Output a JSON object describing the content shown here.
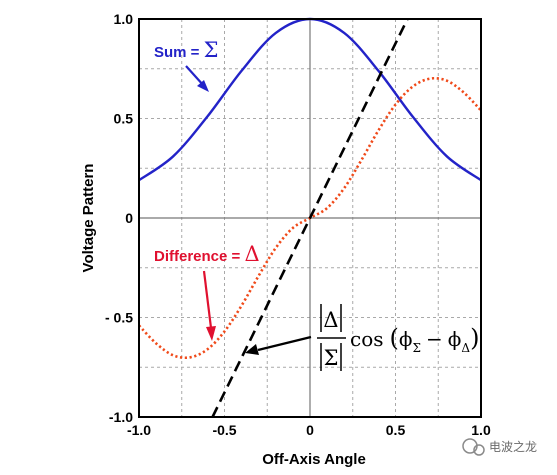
{
  "chart_data": {
    "type": "line",
    "title": "",
    "xlabel": "Off-Axis Angle",
    "ylabel": "Voltage Pattern",
    "xlim": [
      -1.0,
      1.0
    ],
    "ylim": [
      -1.0,
      1.0
    ],
    "grid": true,
    "x_ticks": [
      -1.0,
      -0.5,
      0,
      0.5,
      1.0
    ],
    "x_tick_labels": [
      "-1.0",
      "-0.5",
      "0",
      "0.5",
      "1.0"
    ],
    "y_ticks": [
      1.0,
      0.5,
      0,
      -0.5,
      -1.0
    ],
    "y_tick_labels": [
      "1.0",
      "0.5",
      "0",
      "- 0.5",
      "-1.0"
    ],
    "series": [
      {
        "name": "Sum = Σ",
        "color": "#2323c8",
        "style": "solid",
        "x": [
          -1.0,
          -0.8,
          -0.6,
          -0.4,
          -0.2,
          0.0,
          0.2,
          0.4,
          0.6,
          0.8,
          1.0
        ],
        "y": [
          0.19,
          0.31,
          0.51,
          0.74,
          0.93,
          1.0,
          0.93,
          0.74,
          0.51,
          0.31,
          0.19
        ]
      },
      {
        "name": "Difference = Δ",
        "color": "#f04a1a",
        "style": "dotted",
        "x": [
          -1.0,
          -0.9,
          -0.8,
          -0.7,
          -0.6,
          -0.5,
          -0.4,
          -0.3,
          -0.2,
          -0.1,
          0.0,
          0.1,
          0.2,
          0.3,
          0.4,
          0.5,
          0.6,
          0.7,
          0.8,
          0.9,
          1.0
        ],
        "y": [
          -0.54,
          -0.63,
          -0.69,
          -0.7,
          -0.66,
          -0.57,
          -0.44,
          -0.29,
          -0.15,
          -0.05,
          0.0,
          0.05,
          0.15,
          0.29,
          0.44,
          0.57,
          0.66,
          0.7,
          0.69,
          0.63,
          0.54
        ]
      },
      {
        "name": "|Δ|/|Σ| cos(φΣ − φΔ)",
        "color": "#000000",
        "style": "dashed",
        "x": [
          -0.57,
          0.0,
          0.57
        ],
        "y": [
          -1.0,
          0.0,
          1.0
        ]
      }
    ],
    "annotations": {
      "sum_text": "Sum = ",
      "sum_symbol": "Σ",
      "difference_text": "Difference = ",
      "difference_symbol": "Δ",
      "formula": {
        "numerator": "Δ",
        "denominator": "Σ",
        "cos_text": "cos",
        "open_paren": "(",
        "close_paren": ")",
        "phi": "ϕ",
        "sub_sigma": "Σ",
        "minus": "−",
        "sub_delta": "Δ"
      }
    }
  },
  "watermark": "电波之龙"
}
